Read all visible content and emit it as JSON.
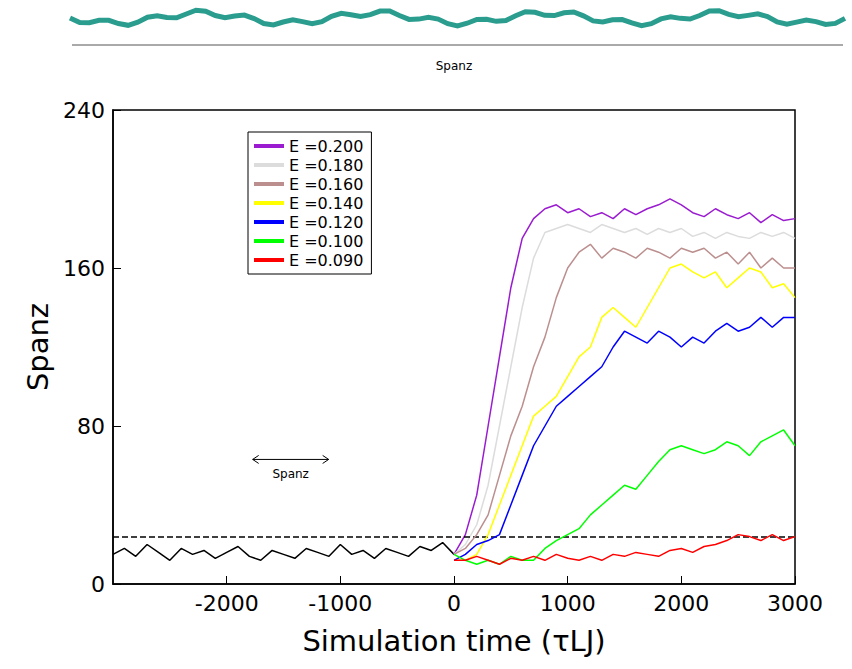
{
  "chart_data": {
    "type": "line",
    "xlabel": "Simulation time (τLJ)",
    "ylabel": "Spanz",
    "xlim": [
      -3000,
      3000
    ],
    "xticks": [
      -2000,
      -1000,
      0,
      1000,
      2000,
      3000
    ],
    "ylim": [
      0,
      240
    ],
    "yticks": [
      0,
      80,
      160,
      240
    ],
    "grid": false,
    "legend": "upper left",
    "reference_line": {
      "y": 24,
      "line_style": "dashed",
      "color": "#000000"
    },
    "annotations": [
      {
        "text": "Spanz",
        "x": -1437,
        "y": 57
      },
      {
        "text": "Spanz"
      }
    ],
    "series": [
      {
        "color": "#000000",
        "x": [
          -3000,
          -2900,
          -2800,
          -2700,
          -2600,
          -2500,
          -2400,
          -2300,
          -2200,
          -2100,
          -2000,
          -1900,
          -1800,
          -1700,
          -1600,
          -1500,
          -1400,
          -1300,
          -1200,
          -1100,
          -1000,
          -900,
          -800,
          -700,
          -600,
          -500,
          -400,
          -300,
          -200,
          -100,
          0
        ],
        "values": [
          15,
          18,
          14,
          20,
          16,
          12,
          18,
          15,
          17,
          13,
          16,
          19,
          14,
          12,
          17,
          15,
          13,
          18,
          16,
          14,
          20,
          15,
          17,
          13,
          18,
          16,
          14,
          19,
          17,
          21,
          15
        ]
      },
      {
        "name": "E =0.200",
        "color": "#9a1bd0",
        "x": [
          0,
          100,
          200,
          300,
          400,
          500,
          600,
          700,
          800,
          900,
          1000,
          1100,
          1200,
          1300,
          1400,
          1500,
          1600,
          1700,
          1800,
          1900,
          2000,
          2100,
          2200,
          2300,
          2400,
          2500,
          2600,
          2700,
          2800,
          2900,
          3000
        ],
        "values": [
          15,
          25,
          45,
          80,
          115,
          150,
          175,
          185,
          190,
          192,
          188,
          190,
          186,
          188,
          185,
          190,
          187,
          190,
          192,
          195,
          192,
          188,
          186,
          190,
          187,
          185,
          188,
          183,
          187,
          184,
          185
        ]
      },
      {
        "name": "E =0.180",
        "color": "#dcdcdc",
        "x": [
          0,
          100,
          200,
          300,
          400,
          500,
          600,
          700,
          800,
          900,
          1000,
          1100,
          1200,
          1300,
          1400,
          1500,
          1600,
          1700,
          1800,
          1900,
          2000,
          2100,
          2200,
          2300,
          2400,
          2500,
          2600,
          2700,
          2800,
          2900,
          3000
        ],
        "values": [
          15,
          20,
          30,
          50,
          80,
          110,
          140,
          165,
          178,
          180,
          182,
          180,
          178,
          182,
          180,
          178,
          180,
          177,
          180,
          178,
          180,
          176,
          178,
          175,
          178,
          176,
          175,
          178,
          176,
          178,
          175
        ]
      },
      {
        "name": "E =0.160",
        "color": "#bc8f8f",
        "x": [
          0,
          100,
          200,
          300,
          400,
          500,
          600,
          700,
          800,
          900,
          1000,
          1100,
          1200,
          1300,
          1400,
          1500,
          1600,
          1700,
          1800,
          1900,
          2000,
          2100,
          2200,
          2300,
          2400,
          2500,
          2600,
          2700,
          2800,
          2900,
          3000
        ],
        "values": [
          15,
          18,
          25,
          35,
          55,
          75,
          90,
          110,
          125,
          145,
          160,
          168,
          172,
          165,
          170,
          168,
          165,
          170,
          168,
          165,
          170,
          168,
          170,
          165,
          168,
          162,
          168,
          160,
          165,
          160,
          160
        ]
      },
      {
        "name": "E =0.140",
        "color": "#ffff00",
        "x": [
          0,
          100,
          200,
          300,
          400,
          500,
          600,
          700,
          800,
          900,
          1000,
          1100,
          1200,
          1300,
          1400,
          1500,
          1600,
          1700,
          1800,
          1900,
          2000,
          2100,
          2200,
          2300,
          2400,
          2500,
          2600,
          2700,
          2800,
          2900,
          3000
        ],
        "values": [
          12,
          12,
          15,
          25,
          40,
          55,
          70,
          85,
          90,
          95,
          105,
          115,
          120,
          135,
          140,
          135,
          130,
          140,
          150,
          160,
          162,
          158,
          155,
          158,
          150,
          155,
          160,
          158,
          150,
          152,
          145
        ]
      },
      {
        "name": "E =0.120",
        "color": "#0000ff",
        "x": [
          0,
          100,
          200,
          300,
          400,
          500,
          600,
          700,
          800,
          900,
          1000,
          1100,
          1200,
          1300,
          1400,
          1500,
          1600,
          1700,
          1800,
          1900,
          2000,
          2100,
          2200,
          2300,
          2400,
          2500,
          2600,
          2700,
          2800,
          2900,
          3000
        ],
        "values": [
          12,
          15,
          20,
          22,
          25,
          40,
          55,
          70,
          80,
          90,
          95,
          100,
          105,
          110,
          120,
          128,
          125,
          122,
          128,
          125,
          120,
          125,
          122,
          128,
          132,
          128,
          130,
          135,
          130,
          135,
          135
        ]
      },
      {
        "name": "E =0.100",
        "color": "#00ff00",
        "x": [
          0,
          100,
          200,
          300,
          400,
          500,
          600,
          700,
          800,
          900,
          1000,
          1100,
          1200,
          1300,
          1400,
          1500,
          1600,
          1700,
          1800,
          1900,
          2000,
          2100,
          2200,
          2300,
          2400,
          2500,
          2600,
          2700,
          2800,
          2900,
          3000
        ],
        "values": [
          15,
          12,
          10,
          12,
          10,
          14,
          12,
          12,
          18,
          22,
          25,
          28,
          35,
          40,
          45,
          50,
          48,
          55,
          62,
          68,
          70,
          68,
          66,
          68,
          72,
          70,
          65,
          72,
          75,
          78,
          70
        ]
      },
      {
        "name": "E =0.090",
        "color": "#ff0000",
        "x": [
          0,
          100,
          200,
          300,
          400,
          500,
          600,
          700,
          800,
          900,
          1000,
          1100,
          1200,
          1300,
          1400,
          1500,
          1600,
          1700,
          1800,
          1900,
          2000,
          2100,
          2200,
          2300,
          2400,
          2500,
          2600,
          2700,
          2800,
          2900,
          3000
        ],
        "values": [
          12,
          12,
          14,
          12,
          10,
          13,
          12,
          14,
          12,
          15,
          13,
          12,
          14,
          12,
          15,
          14,
          16,
          15,
          14,
          17,
          18,
          16,
          19,
          20,
          22,
          25,
          24,
          22,
          25,
          22,
          24
        ]
      }
    ]
  }
}
